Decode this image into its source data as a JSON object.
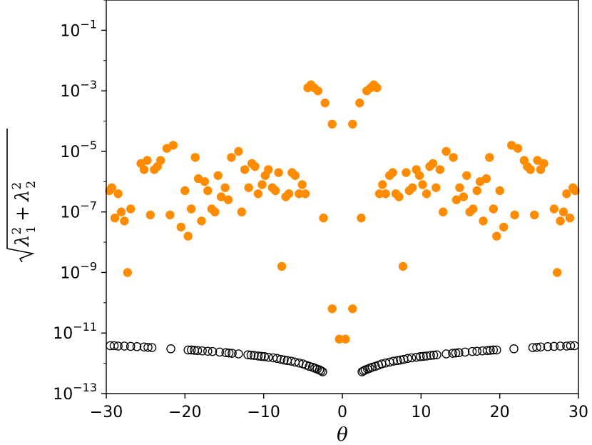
{
  "chart_data": {
    "type": "scatter",
    "xlabel": "θ",
    "ylabel": {
      "prefix": "λ",
      "sub1": "1",
      "sub2": "2",
      "sup": "2",
      "plus": "+"
    },
    "xlim": [
      -30,
      30
    ],
    "ylim_exp": [
      -13,
      0
    ],
    "y_scale": "log",
    "x_ticks": [
      "−30",
      "−20",
      "−10",
      "0",
      "10",
      "20",
      "30"
    ],
    "x_tick_values": [
      -30,
      -20,
      -10,
      0,
      10,
      20,
      30
    ],
    "y_tick_exponents": [
      "−1",
      "−3",
      "−5",
      "−7",
      "−9",
      "−11",
      "−13"
    ],
    "y_tick_values": [
      -1,
      -3,
      -5,
      -7,
      -9,
      -11,
      -13
    ],
    "y_tick_base": "10",
    "grid": false,
    "colors": {
      "filled": "#ff8c00",
      "hollow_edge": "#000000"
    },
    "series": [
      {
        "style": "filled-orange",
        "points": [
          [
            -29.6,
            -6.3
          ],
          [
            -29.3,
            -6.2
          ],
          [
            -28.9,
            -7.2
          ],
          [
            -28.5,
            -6.4
          ],
          [
            -28.1,
            -7.0
          ],
          [
            -27.7,
            -7.3
          ],
          [
            -27.3,
            -9.0
          ],
          [
            -26.9,
            -6.9
          ],
          [
            -25.6,
            -5.4
          ],
          [
            -25.2,
            -5.6
          ],
          [
            -24.8,
            -5.3
          ],
          [
            -24.4,
            -7.1
          ],
          [
            -23.9,
            -5.6
          ],
          [
            -23.5,
            -5.5
          ],
          [
            -23.1,
            -5.3
          ],
          [
            -22.3,
            -4.9
          ],
          [
            -21.9,
            -7.1
          ],
          [
            -21.5,
            -4.8
          ],
          [
            -20.5,
            -7.5
          ],
          [
            -20.0,
            -6.3
          ],
          [
            -19.6,
            -7.8
          ],
          [
            -19.2,
            -6.9
          ],
          [
            -18.7,
            -5.2
          ],
          [
            -18.3,
            -5.9
          ],
          [
            -17.9,
            -7.3
          ],
          [
            -17.5,
            -6.0
          ],
          [
            -17.1,
            -6.3
          ],
          [
            -16.6,
            -6.9
          ],
          [
            -16.2,
            -7.0
          ],
          [
            -15.8,
            -5.8
          ],
          [
            -15.4,
            -6.5
          ],
          [
            -14.9,
            -6.2
          ],
          [
            -14.5,
            -6.6
          ],
          [
            -14.1,
            -5.2
          ],
          [
            -13.2,
            -5.0
          ],
          [
            -12.8,
            -7.0
          ],
          [
            -12.4,
            -5.6
          ],
          [
            -11.9,
            -6.2
          ],
          [
            -11.5,
            -5.4
          ],
          [
            -11.1,
            -5.5
          ],
          [
            -10.7,
            -6.4
          ],
          [
            -10.2,
            -6.1
          ],
          [
            -9.8,
            -5.8
          ],
          [
            -9.4,
            -5.6
          ],
          [
            -8.9,
            -6.2
          ],
          [
            -8.5,
            -6.3
          ],
          [
            -8.1,
            -5.7
          ],
          [
            -7.7,
            -8.8
          ],
          [
            -7.2,
            -6.5
          ],
          [
            -6.8,
            -6.4
          ],
          [
            -6.4,
            -5.7
          ],
          [
            -6.0,
            -5.8
          ],
          [
            -5.5,
            -6.4
          ],
          [
            -5.1,
            -6.1
          ],
          [
            -4.7,
            -6.4
          ],
          [
            -4.4,
            -2.9
          ],
          [
            -4.0,
            -2.8
          ],
          [
            -3.6,
            -2.9
          ],
          [
            -3.1,
            -3.0
          ],
          [
            -2.2,
            -3.4
          ],
          [
            -1.3,
            -4.1
          ],
          [
            -2.4,
            -7.2
          ],
          [
            -1.3,
            -10.2
          ],
          [
            -0.4,
            -11.2
          ],
          [
            29.6,
            -6.3
          ],
          [
            29.3,
            -6.2
          ],
          [
            28.9,
            -7.2
          ],
          [
            28.5,
            -6.4
          ],
          [
            28.1,
            -7.0
          ],
          [
            27.7,
            -7.3
          ],
          [
            27.3,
            -9.0
          ],
          [
            26.9,
            -6.9
          ],
          [
            25.6,
            -5.4
          ],
          [
            25.2,
            -5.6
          ],
          [
            24.8,
            -5.3
          ],
          [
            24.4,
            -7.1
          ],
          [
            23.9,
            -5.6
          ],
          [
            23.5,
            -5.5
          ],
          [
            23.1,
            -5.3
          ],
          [
            22.3,
            -4.9
          ],
          [
            21.9,
            -7.1
          ],
          [
            21.5,
            -4.8
          ],
          [
            20.5,
            -7.5
          ],
          [
            20.0,
            -6.3
          ],
          [
            19.6,
            -7.8
          ],
          [
            19.2,
            -6.9
          ],
          [
            18.7,
            -5.2
          ],
          [
            18.3,
            -5.9
          ],
          [
            17.9,
            -7.3
          ],
          [
            17.5,
            -6.0
          ],
          [
            17.1,
            -6.3
          ],
          [
            16.6,
            -6.9
          ],
          [
            16.2,
            -7.0
          ],
          [
            15.8,
            -5.8
          ],
          [
            15.4,
            -6.5
          ],
          [
            14.9,
            -6.2
          ],
          [
            14.5,
            -6.6
          ],
          [
            14.1,
            -5.2
          ],
          [
            13.2,
            -5.0
          ],
          [
            12.8,
            -7.0
          ],
          [
            12.4,
            -5.6
          ],
          [
            11.9,
            -6.2
          ],
          [
            11.5,
            -5.4
          ],
          [
            11.1,
            -5.5
          ],
          [
            10.7,
            -6.4
          ],
          [
            10.2,
            -6.1
          ],
          [
            9.8,
            -5.8
          ],
          [
            9.4,
            -5.6
          ],
          [
            8.9,
            -6.2
          ],
          [
            8.5,
            -6.3
          ],
          [
            8.1,
            -5.7
          ],
          [
            7.7,
            -8.8
          ],
          [
            7.2,
            -6.5
          ],
          [
            6.8,
            -6.4
          ],
          [
            6.4,
            -5.7
          ],
          [
            6.0,
            -5.8
          ],
          [
            5.5,
            -6.4
          ],
          [
            5.1,
            -6.1
          ],
          [
            4.7,
            -6.4
          ],
          [
            4.4,
            -2.9
          ],
          [
            4.0,
            -2.8
          ],
          [
            3.6,
            -2.9
          ],
          [
            3.1,
            -3.0
          ],
          [
            2.2,
            -3.4
          ],
          [
            1.3,
            -4.1
          ],
          [
            2.4,
            -7.2
          ],
          [
            1.3,
            -10.2
          ],
          [
            0.4,
            -11.2
          ]
        ]
      },
      {
        "style": "hollow-black",
        "points": [
          [
            -29.5,
            -11.42
          ],
          [
            -29.0,
            -11.42
          ],
          [
            -28.5,
            -11.43
          ],
          [
            -27.7,
            -11.43
          ],
          [
            -26.9,
            -11.44
          ],
          [
            -26.1,
            -11.45
          ],
          [
            -25.2,
            -11.46
          ],
          [
            -24.7,
            -11.47
          ],
          [
            -24.2,
            -11.48
          ],
          [
            -21.8,
            -11.52
          ],
          [
            -19.6,
            -11.56
          ],
          [
            -19.2,
            -11.56
          ],
          [
            -18.8,
            -11.57
          ],
          [
            -18.4,
            -11.58
          ],
          [
            -17.8,
            -11.59
          ],
          [
            -17.1,
            -11.6
          ],
          [
            -16.5,
            -11.61
          ],
          [
            -15.6,
            -11.63
          ],
          [
            -14.8,
            -11.65
          ],
          [
            -14.4,
            -11.66
          ],
          [
            -14.0,
            -11.67
          ],
          [
            -13.2,
            -11.69
          ],
          [
            -12.0,
            -11.72
          ],
          [
            -11.6,
            -11.73
          ],
          [
            -11.2,
            -11.74
          ],
          [
            -10.7,
            -11.76
          ],
          [
            -10.3,
            -11.77
          ],
          [
            -9.9,
            -11.78
          ],
          [
            -9.4,
            -11.8
          ],
          [
            -8.8,
            -11.82
          ],
          [
            -8.3,
            -11.84
          ],
          [
            -7.8,
            -11.87
          ],
          [
            -7.4,
            -11.89
          ],
          [
            -7.0,
            -11.91
          ],
          [
            -6.5,
            -11.93
          ],
          [
            -6.0,
            -11.96
          ],
          [
            -5.5,
            -11.99
          ],
          [
            -5.0,
            -12.02
          ],
          [
            -4.6,
            -12.06
          ],
          [
            -4.2,
            -12.1
          ],
          [
            -3.8,
            -12.13
          ],
          [
            -3.5,
            -12.16
          ],
          [
            -3.2,
            -12.19
          ],
          [
            -2.9,
            -12.22
          ],
          [
            -2.7,
            -12.25
          ],
          [
            -2.5,
            -12.28
          ],
          [
            29.5,
            -11.42
          ],
          [
            29.0,
            -11.42
          ],
          [
            28.5,
            -11.43
          ],
          [
            27.7,
            -11.43
          ],
          [
            26.9,
            -11.44
          ],
          [
            26.1,
            -11.45
          ],
          [
            25.2,
            -11.46
          ],
          [
            24.7,
            -11.47
          ],
          [
            24.2,
            -11.48
          ],
          [
            21.8,
            -11.52
          ],
          [
            19.6,
            -11.56
          ],
          [
            19.2,
            -11.56
          ],
          [
            18.8,
            -11.57
          ],
          [
            18.4,
            -11.58
          ],
          [
            17.8,
            -11.59
          ],
          [
            17.1,
            -11.6
          ],
          [
            16.5,
            -11.61
          ],
          [
            15.6,
            -11.63
          ],
          [
            14.8,
            -11.65
          ],
          [
            14.4,
            -11.66
          ],
          [
            14.0,
            -11.67
          ],
          [
            13.2,
            -11.69
          ],
          [
            12.0,
            -11.72
          ],
          [
            11.6,
            -11.73
          ],
          [
            11.2,
            -11.74
          ],
          [
            10.7,
            -11.76
          ],
          [
            10.3,
            -11.77
          ],
          [
            9.9,
            -11.78
          ],
          [
            9.4,
            -11.8
          ],
          [
            8.8,
            -11.82
          ],
          [
            8.3,
            -11.84
          ],
          [
            7.8,
            -11.87
          ],
          [
            7.4,
            -11.89
          ],
          [
            7.0,
            -11.91
          ],
          [
            6.5,
            -11.93
          ],
          [
            6.0,
            -11.96
          ],
          [
            5.5,
            -11.99
          ],
          [
            5.0,
            -12.02
          ],
          [
            4.6,
            -12.06
          ],
          [
            4.2,
            -12.1
          ],
          [
            3.8,
            -12.13
          ],
          [
            3.5,
            -12.16
          ],
          [
            3.2,
            -12.19
          ],
          [
            2.9,
            -12.22
          ],
          [
            2.7,
            -12.25
          ],
          [
            2.5,
            -12.28
          ]
        ]
      }
    ]
  }
}
